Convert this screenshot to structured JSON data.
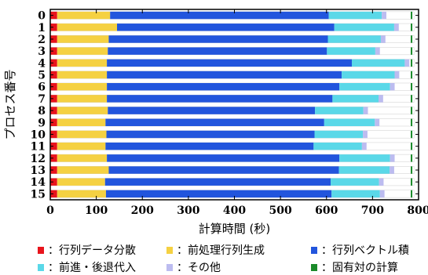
{
  "chart_data": {
    "type": "bar",
    "orientation": "horizontal",
    "stacked": true,
    "xlabel": "計算時間 (秒)",
    "ylabel": "プロセス番号",
    "xlim": [
      0,
      800
    ],
    "xticks": [
      0,
      100,
      200,
      300,
      400,
      500,
      600,
      700,
      800
    ],
    "categories": [
      "0",
      "1",
      "2",
      "3",
      "4",
      "5",
      "6",
      "7",
      "8",
      "9",
      "10",
      "11",
      "12",
      "13",
      "14",
      "15"
    ],
    "series": [
      {
        "name": "行列データ分散",
        "color": "#e8141c",
        "values": [
          15,
          15,
          15,
          15,
          15,
          15,
          15,
          15,
          15,
          15,
          15,
          15,
          15,
          15,
          15,
          15
        ]
      },
      {
        "name": "前処理行列生成",
        "color": "#f5d142",
        "values": [
          115,
          130,
          112,
          110,
          108,
          108,
          108,
          108,
          110,
          105,
          107,
          105,
          108,
          112,
          104,
          106
        ]
      },
      {
        "name": "行列ベクトル積",
        "color": "#2255dd",
        "values": [
          475,
          472,
          476,
          476,
          532,
          510,
          505,
          490,
          450,
          475,
          452,
          452,
          505,
          500,
          490,
          490
        ]
      },
      {
        "name": "前進・後退代入",
        "color": "#5ad8e8",
        "values": [
          115,
          130,
          115,
          105,
          115,
          115,
          110,
          100,
          105,
          110,
          105,
          105,
          110,
          110,
          105,
          105
        ]
      },
      {
        "name": "その他",
        "color": "#bcbcf0",
        "values": [
          10,
          10,
          10,
          10,
          10,
          10,
          10,
          10,
          10,
          10,
          10,
          10,
          10,
          10,
          10,
          10
        ]
      },
      {
        "name": "固有対の計算",
        "color": "#1a8a2a",
        "values": [
          3,
          3,
          3,
          3,
          3,
          3,
          3,
          3,
          3,
          3,
          3,
          3,
          3,
          3,
          3,
          3
        ]
      }
    ],
    "whitespace_end": 790,
    "grid": false,
    "legend_position": "bottom"
  },
  "legend": {
    "separator": "："
  }
}
